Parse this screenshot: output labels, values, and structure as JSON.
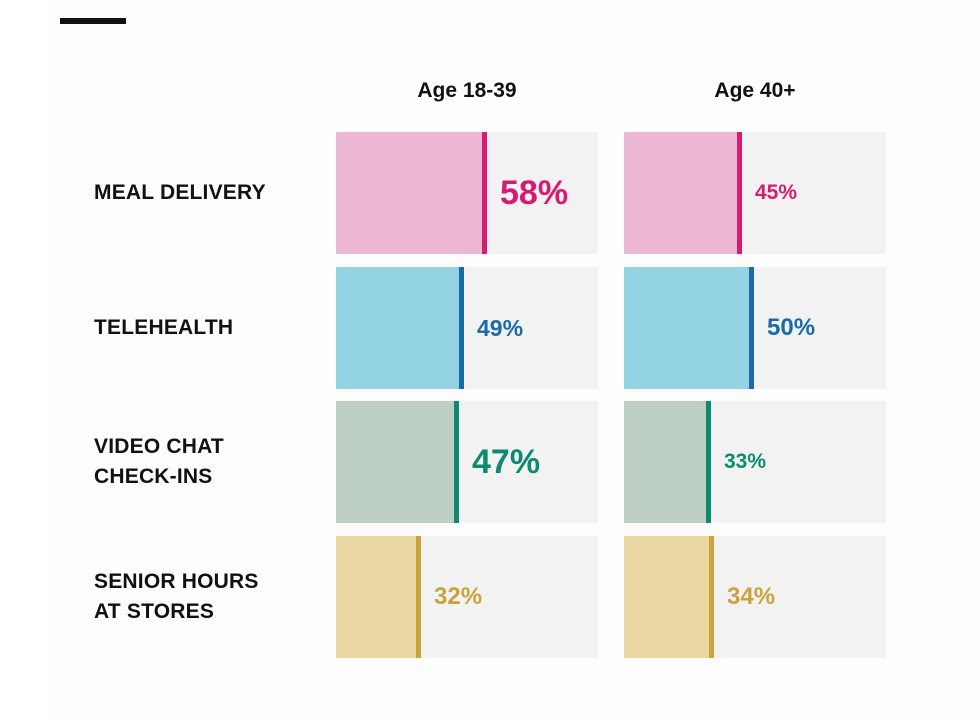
{
  "chart_data": {
    "type": "bar",
    "orientation": "horizontal",
    "layout": "small-multiples",
    "xlim": [
      0,
      100
    ],
    "columns": [
      "Age 18-39",
      "Age 40+"
    ],
    "categories": [
      "MEAL DELIVERY",
      "TELEHEALTH",
      "VIDEO CHAT\nCHECK-INS",
      "SENIOR HOURS\nAT STORES"
    ],
    "series": [
      {
        "name": "Age 18-39",
        "values": [
          58,
          49,
          47,
          32
        ],
        "labels": [
          "58%",
          "49%",
          "47%",
          "32%"
        ]
      },
      {
        "name": "Age 40+",
        "values": [
          45,
          50,
          33,
          34
        ],
        "labels": [
          "45%",
          "50%",
          "33%",
          "34%"
        ]
      }
    ],
    "emphasized": [
      [
        true,
        false
      ],
      [
        false,
        false
      ],
      [
        true,
        false
      ],
      [
        false,
        false
      ]
    ],
    "colors": {
      "background": "#f2f2f2",
      "fill": [
        "#ebb7d3",
        "#93d3e3",
        "#becfc5",
        "#ead7a2"
      ],
      "accent": [
        "#d81b72",
        "#1b6aa8",
        "#0e8a70",
        "#c9a43a"
      ]
    }
  }
}
